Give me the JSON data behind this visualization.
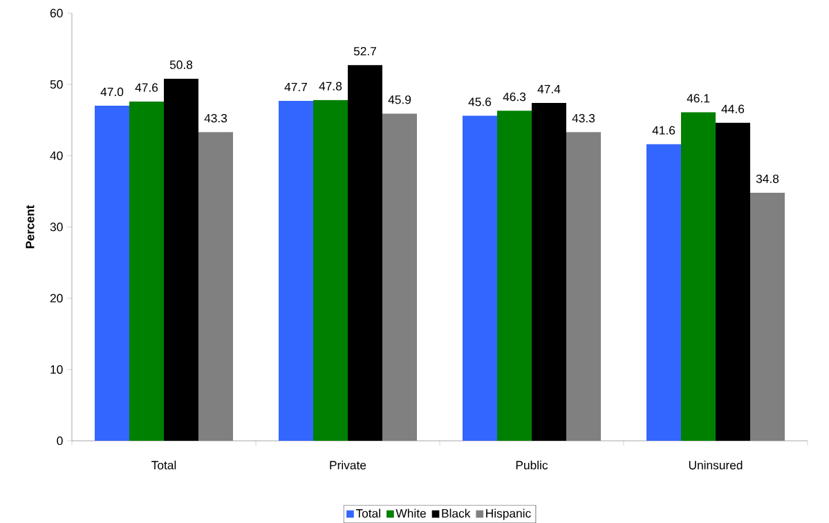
{
  "chart_data": {
    "type": "bar",
    "ylabel": "Percent",
    "categories": [
      "Total",
      "Private",
      "Public",
      "Uninsured"
    ],
    "series": [
      {
        "name": "Total",
        "color": "#3366ff",
        "values": [
          47.0,
          47.7,
          45.6,
          41.6
        ],
        "value_labels": [
          "47.0",
          "47.7",
          "45.6",
          "41.6"
        ]
      },
      {
        "name": "White",
        "color": "#008000",
        "values": [
          47.6,
          47.8,
          46.3,
          46.1
        ],
        "value_labels": [
          "47.6",
          "47.8",
          "46.3",
          "46.1"
        ]
      },
      {
        "name": "Black",
        "color": "#000000",
        "values": [
          50.8,
          52.7,
          47.4,
          44.6
        ],
        "value_labels": [
          "50.8",
          "52.7",
          "47.4",
          "44.6"
        ]
      },
      {
        "name": "Hispanic",
        "color": "#808080",
        "values": [
          43.3,
          45.9,
          43.3,
          34.8
        ],
        "value_labels": [
          "43.3",
          "45.9",
          "43.3",
          "34.8"
        ]
      }
    ],
    "ylim": [
      0,
      60
    ],
    "yticks": [
      0,
      10,
      20,
      30,
      40,
      50,
      60
    ],
    "legend": "bottom",
    "grid": false
  }
}
